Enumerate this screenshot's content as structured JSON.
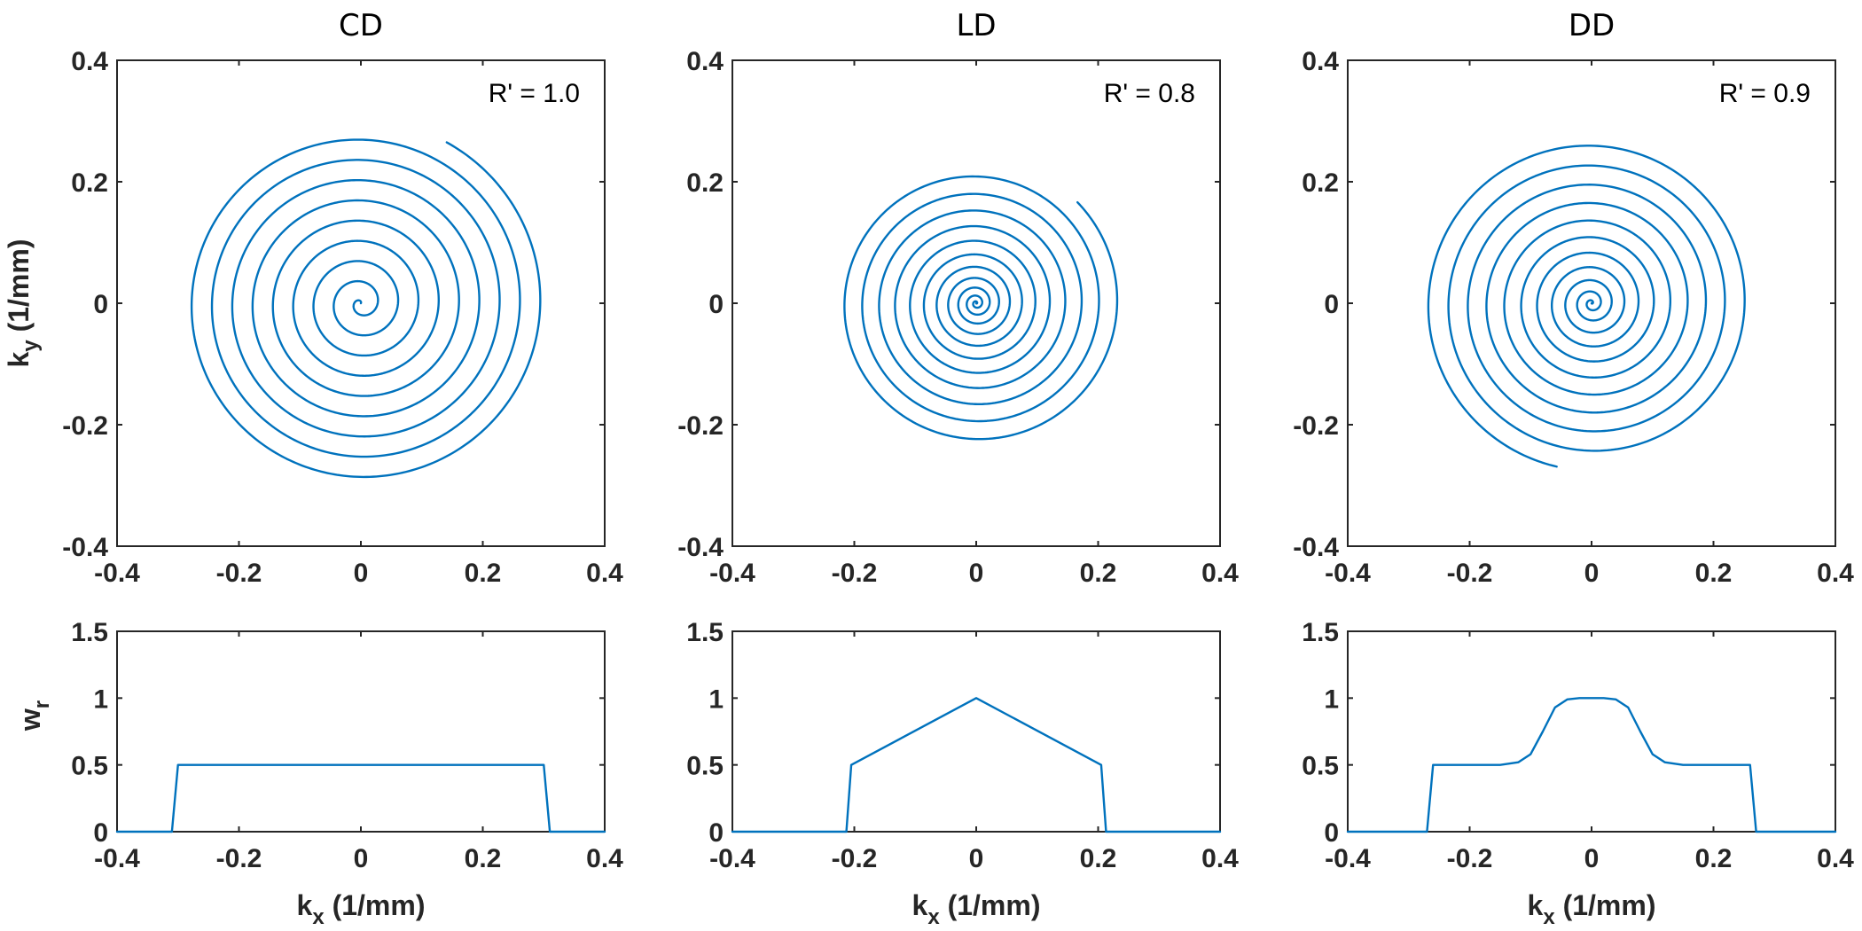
{
  "colors": {
    "line": "#0072BD",
    "axis": "#262626"
  },
  "chart_data": [
    {
      "panel": "top-left",
      "type": "line",
      "title": "CD",
      "xlabel": "",
      "ylabel_main": "k",
      "ylabel_sub": "y",
      "ylabel_unit": " (1/mm)",
      "annotation": "R' = 1.0",
      "xlim": [
        -0.4,
        0.4
      ],
      "ylim": [
        -0.4,
        0.4
      ],
      "xticks": [
        -0.4,
        -0.2,
        0,
        0.2,
        0.4
      ],
      "yticks": [
        -0.4,
        -0.2,
        0,
        0.2,
        0.4
      ],
      "xtick_labels": [
        "-0.4",
        "-0.2",
        "0",
        "0.2",
        "0.4"
      ],
      "ytick_labels": [
        "-0.4",
        "-0.2",
        "0",
        "0.2",
        "0.4"
      ],
      "series": [
        {
          "kind": "archimedean-spiral",
          "turns": 9,
          "start_radius": 0,
          "end_radius": 0.3,
          "end_angle_deg": 62,
          "density_exponent": 1.0
        }
      ]
    },
    {
      "panel": "top-middle",
      "type": "line",
      "title": "LD",
      "annotation": "R' = 0.8",
      "xlim": [
        -0.4,
        0.4
      ],
      "ylim": [
        -0.4,
        0.4
      ],
      "xticks": [
        -0.4,
        -0.2,
        0,
        0.2,
        0.4
      ],
      "yticks": [
        -0.4,
        -0.2,
        0,
        0.2,
        0.4
      ],
      "xtick_labels": [
        "-0.4",
        "-0.2",
        "0",
        "0.2",
        "0.4"
      ],
      "ytick_labels": [
        "-0.4",
        "-0.2",
        "0",
        "0.2",
        "0.4"
      ],
      "series": [
        {
          "kind": "variable-density-spiral",
          "turns": 11.5,
          "start_radius": 0,
          "end_radius": 0.235,
          "end_angle_deg": 45,
          "density_exponent": 1.5
        }
      ]
    },
    {
      "panel": "top-right",
      "type": "line",
      "title": "DD",
      "annotation": "R' = 0.9",
      "xlim": [
        -0.4,
        0.4
      ],
      "ylim": [
        -0.4,
        0.4
      ],
      "xticks": [
        -0.4,
        -0.2,
        0,
        0.2,
        0.4
      ],
      "yticks": [
        -0.4,
        -0.2,
        0,
        0.2,
        0.4
      ],
      "xtick_labels": [
        "-0.4",
        "-0.2",
        "0",
        "0.2",
        "0.4"
      ],
      "ytick_labels": [
        "-0.4",
        "-0.2",
        "0",
        "0.2",
        "0.4"
      ],
      "series": [
        {
          "kind": "dual-density-spiral",
          "turns": 11,
          "start_radius": 0,
          "end_radius": 0.275,
          "end_angle_deg": -102,
          "density_exponent": 1.35
        }
      ]
    },
    {
      "panel": "bottom-left",
      "type": "line",
      "xlabel_main": "k",
      "xlabel_sub": "x",
      "xlabel_unit": " (1/mm)",
      "ylabel_main": "w",
      "ylabel_sub": "r",
      "xlim": [
        -0.4,
        0.4
      ],
      "ylim": [
        0,
        1.5
      ],
      "xticks": [
        -0.4,
        -0.2,
        0,
        0.2,
        0.4
      ],
      "yticks": [
        0,
        0.5,
        1,
        1.5
      ],
      "xtick_labels": [
        "-0.4",
        "-0.2",
        "0",
        "0.2",
        "0.4"
      ],
      "ytick_labels": [
        "0",
        "0.5",
        "1",
        "1.5"
      ],
      "series": [
        {
          "x": [
            -0.4,
            -0.31,
            -0.3,
            0.3,
            0.31,
            0.4
          ],
          "y": [
            0,
            0,
            0.5,
            0.5,
            0,
            0
          ]
        }
      ]
    },
    {
      "panel": "bottom-middle",
      "type": "line",
      "xlabel_main": "k",
      "xlabel_sub": "x",
      "xlabel_unit": " (1/mm)",
      "xlim": [
        -0.4,
        0.4
      ],
      "ylim": [
        0,
        1.5
      ],
      "xticks": [
        -0.4,
        -0.2,
        0,
        0.2,
        0.4
      ],
      "yticks": [
        0,
        0.5,
        1,
        1.5
      ],
      "xtick_labels": [
        "-0.4",
        "-0.2",
        "0",
        "0.2",
        "0.4"
      ],
      "ytick_labels": [
        "0",
        "0.5",
        "1",
        "1.5"
      ],
      "series": [
        {
          "x": [
            -0.4,
            -0.213,
            -0.205,
            0,
            0.205,
            0.213,
            0.4
          ],
          "y": [
            0,
            0,
            0.5,
            1,
            0.5,
            0,
            0
          ]
        }
      ]
    },
    {
      "panel": "bottom-right",
      "type": "line",
      "xlabel_main": "k",
      "xlabel_sub": "x",
      "xlabel_unit": " (1/mm)",
      "xlim": [
        -0.4,
        0.4
      ],
      "ylim": [
        0,
        1.5
      ],
      "xticks": [
        -0.4,
        -0.2,
        0,
        0.2,
        0.4
      ],
      "yticks": [
        0,
        0.5,
        1,
        1.5
      ],
      "xtick_labels": [
        "-0.4",
        "-0.2",
        "0",
        "0.2",
        "0.4"
      ],
      "ytick_labels": [
        "0",
        "0.5",
        "1",
        "1.5"
      ],
      "series": [
        {
          "x": [
            -0.4,
            -0.27,
            -0.26,
            -0.2,
            -0.15,
            -0.12,
            -0.1,
            -0.08,
            -0.06,
            -0.04,
            -0.02,
            0,
            0.02,
            0.04,
            0.06,
            0.08,
            0.1,
            0.12,
            0.15,
            0.2,
            0.26,
            0.27,
            0.4
          ],
          "y": [
            0,
            0,
            0.5,
            0.5,
            0.5,
            0.52,
            0.58,
            0.75,
            0.93,
            0.99,
            1.0,
            1.0,
            1.0,
            0.99,
            0.93,
            0.75,
            0.58,
            0.52,
            0.5,
            0.5,
            0.5,
            0,
            0
          ]
        }
      ]
    }
  ]
}
